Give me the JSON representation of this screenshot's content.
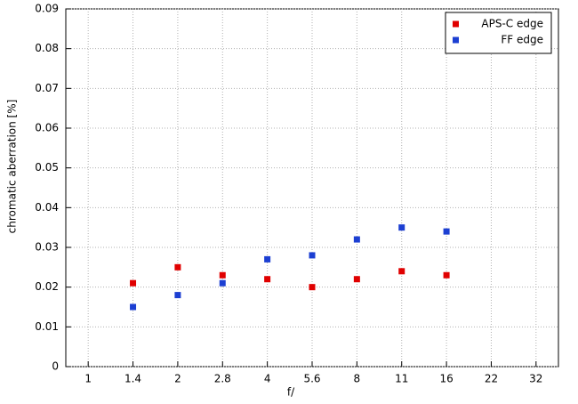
{
  "chart_data": {
    "type": "scatter",
    "x_label": "f/",
    "y_label": "chromatic  aberration [%]",
    "categories": [
      "1",
      "1.4",
      "2",
      "2.8",
      "4",
      "5.6",
      "8",
      "11",
      "16",
      "22",
      "32"
    ],
    "series": [
      {
        "name": "APS-C edge",
        "color": "#e00000",
        "values": [
          null,
          0.021,
          0.025,
          0.023,
          0.022,
          0.02,
          0.022,
          0.024,
          0.023,
          null,
          null
        ]
      },
      {
        "name": "FF edge",
        "color": "#1c3fd2",
        "values": [
          null,
          0.015,
          0.018,
          0.021,
          0.027,
          0.028,
          0.032,
          0.035,
          0.034,
          null,
          null
        ]
      }
    ],
    "ylim": [
      0,
      0.09
    ],
    "yticks": [
      0,
      0.01,
      0.02,
      0.03,
      0.04,
      0.05,
      0.06,
      0.07,
      0.08,
      0.09
    ],
    "grid": true,
    "legend": "top-right"
  }
}
